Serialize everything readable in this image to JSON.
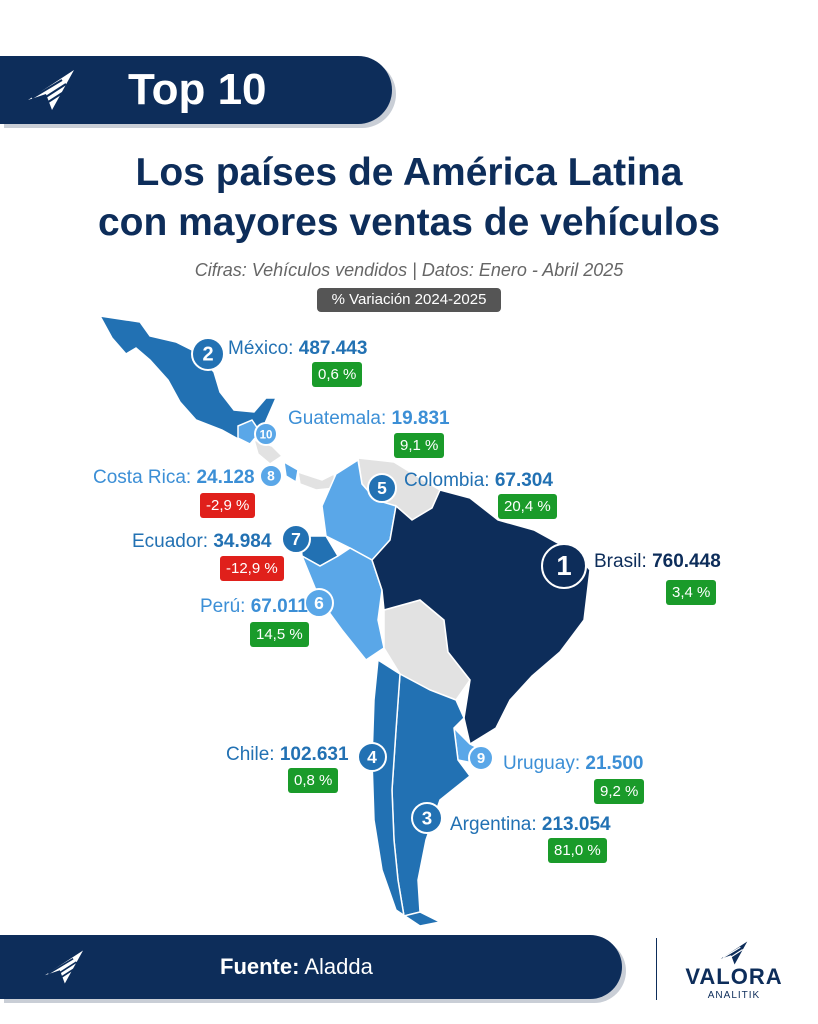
{
  "header": {
    "badge_title": "Top 10",
    "title_line1": "Los países de América Latina",
    "title_line2": "con mayores ventas de vehículos",
    "subtitle": "Cifras: Vehículos vendidos | Datos: Enero - Abril 2025",
    "variation_label": "% Variación 2024-2025"
  },
  "colors": {
    "navy": "#0d2d5a",
    "mid_blue": "#2271b3",
    "light_blue": "#5aa7e8",
    "grey_country": "#e2e2e2",
    "positive": "#1a9b2a",
    "negative": "#e0201b"
  },
  "countries": [
    {
      "rank": "1",
      "name": "Brasil:",
      "value": "760.448",
      "variation": "3,4 %",
      "trend": "up"
    },
    {
      "rank": "2",
      "name": "México:",
      "value": "487.443",
      "variation": "0,6 %",
      "trend": "up"
    },
    {
      "rank": "3",
      "name": "Argentina:",
      "value": "213.054",
      "variation": "81,0 %",
      "trend": "up"
    },
    {
      "rank": "4",
      "name": "Chile:",
      "value": "102.631",
      "variation": "0,8 %",
      "trend": "up"
    },
    {
      "rank": "5",
      "name": "Colombia:",
      "value": "67.304",
      "variation": "20,4 %",
      "trend": "up"
    },
    {
      "rank": "6",
      "name": "Perú:",
      "value": "67.011",
      "variation": "14,5 %",
      "trend": "up"
    },
    {
      "rank": "7",
      "name": "Ecuador:",
      "value": "34.984",
      "variation": "-12,9 %",
      "trend": "down"
    },
    {
      "rank": "8",
      "name": "Costa Rica:",
      "value": "24.128",
      "variation": "-2,9 %",
      "trend": "down"
    },
    {
      "rank": "9",
      "name": "Uruguay:",
      "value": "21.500",
      "variation": "9,2 %",
      "trend": "up"
    },
    {
      "rank": "10",
      "name": "Guatemala:",
      "value": "19.831",
      "variation": "9,1 %",
      "trend": "up"
    }
  ],
  "footer": {
    "source_label": "Fuente:",
    "source_value": "Aladda",
    "brand_name": "VALORA",
    "brand_sub": "ANALITIK"
  }
}
